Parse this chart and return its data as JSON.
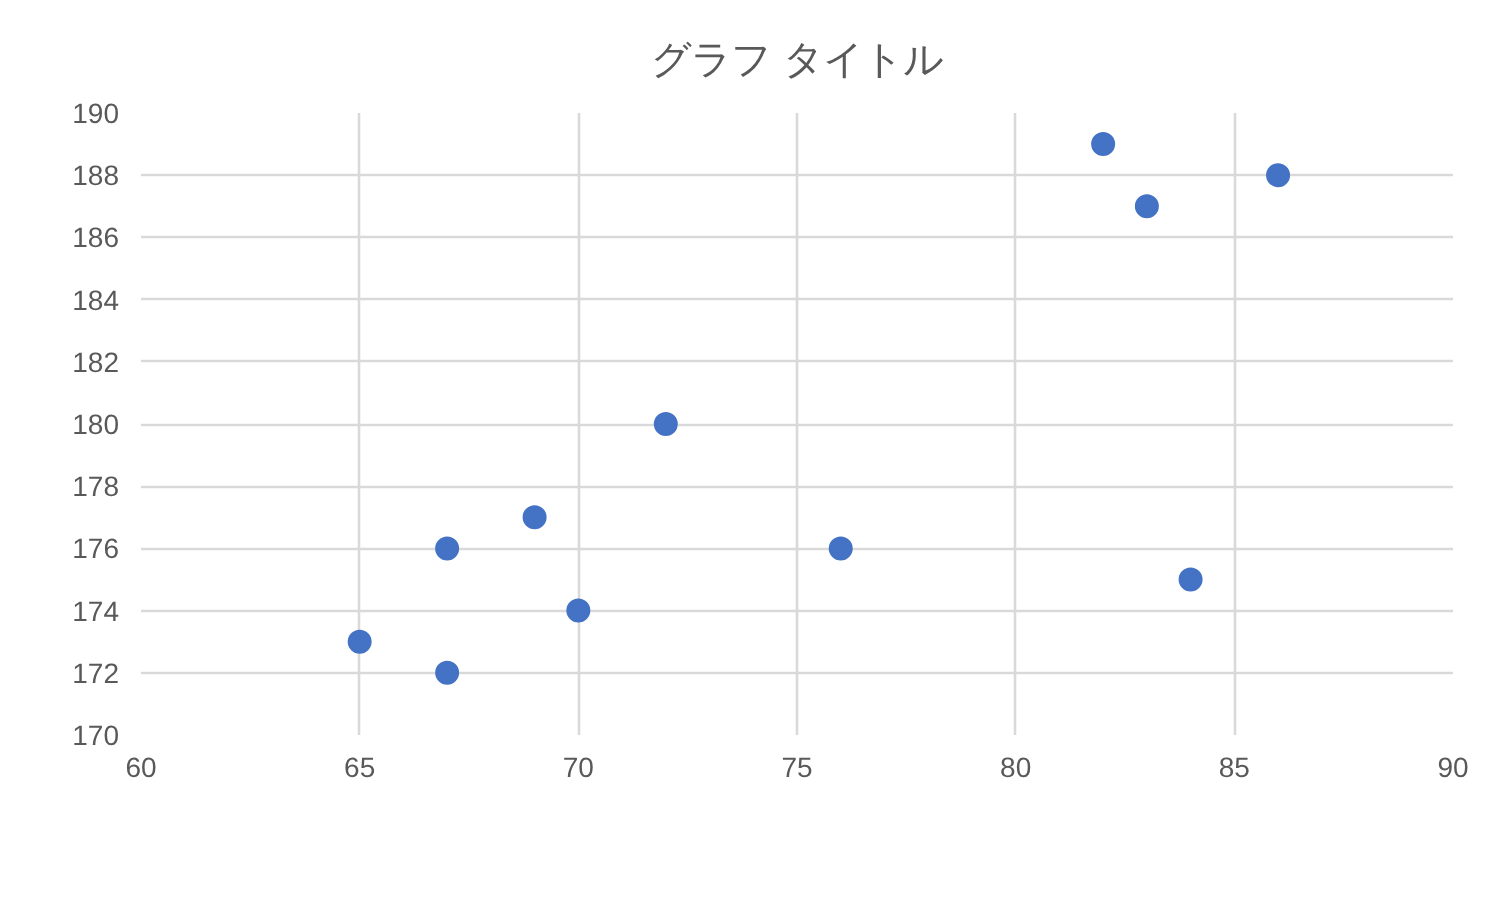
{
  "chart_data": {
    "type": "scatter",
    "title": "グラフ タイトル",
    "x": [
      65,
      67,
      67,
      69,
      70,
      72,
      76,
      82,
      83,
      84,
      86
    ],
    "values": [
      173,
      172,
      176,
      177,
      174,
      180,
      176,
      189,
      187,
      175,
      188
    ],
    "color": "#4472c4",
    "marker": "circle",
    "xlim": [
      60,
      90
    ],
    "xticks": [
      60,
      65,
      70,
      75,
      80,
      85,
      90
    ],
    "ylim": [
      170,
      190
    ],
    "yticks": [
      170,
      172,
      174,
      176,
      178,
      180,
      182,
      184,
      186,
      188,
      190
    ],
    "grid": true,
    "legend": false
  }
}
